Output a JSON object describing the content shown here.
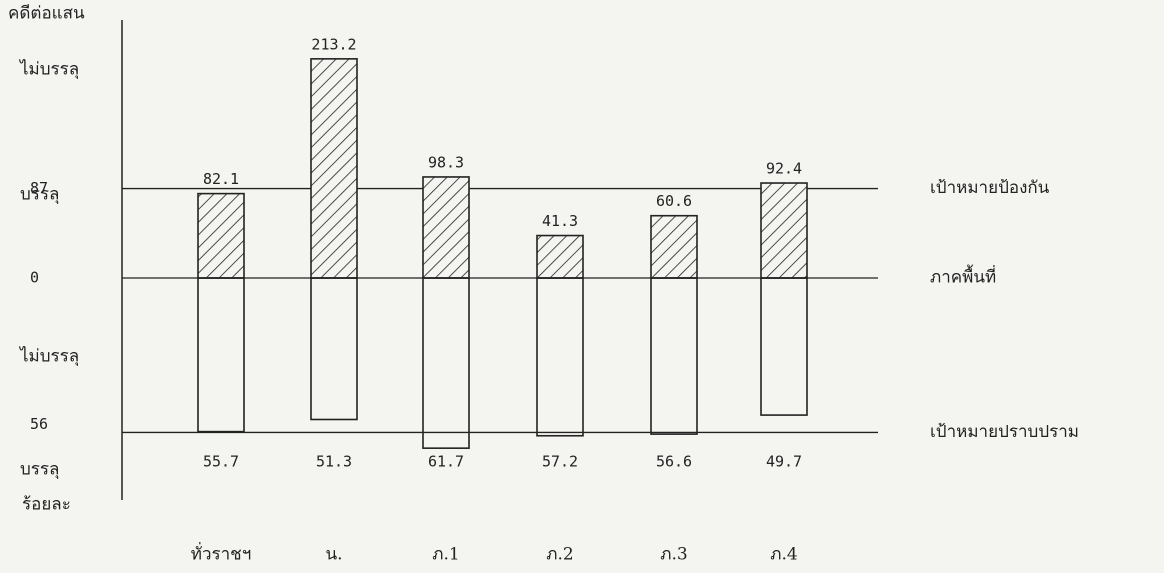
{
  "chart_data": {
    "type": "bar",
    "ylabel": "คดีต่อแสน",
    "y2label": "ร้อยละ",
    "left_notes": [
      "ไม่บรรลุ",
      "บรรลุ",
      "ไม่บรรลุ",
      "บรรลุ"
    ],
    "right_labels": [
      "เป้าหมายป้องกัน",
      "ภาคพื้นที่",
      "เป้าหมายปราบปราม"
    ],
    "categories": [
      "ทั่วราชฯ",
      "น.",
      "ภ.1",
      "ภ.2",
      "ภ.3",
      "ภ.4"
    ],
    "series": [
      {
        "values": [
          82.1,
          213.2,
          98.3,
          41.3,
          60.6,
          92.4
        ],
        "color": "#222222",
        "axis": "y"
      },
      {
        "values": [
          55.7,
          51.3,
          61.7,
          57.2,
          56.6,
          49.7
        ],
        "color": "#222222",
        "axis": "y2"
      }
    ],
    "ylim": [
      0,
      215
    ],
    "yticks": [
      0,
      87
    ],
    "y2lim": [
      0,
      62
    ],
    "y2ticks": [
      56
    ]
  }
}
